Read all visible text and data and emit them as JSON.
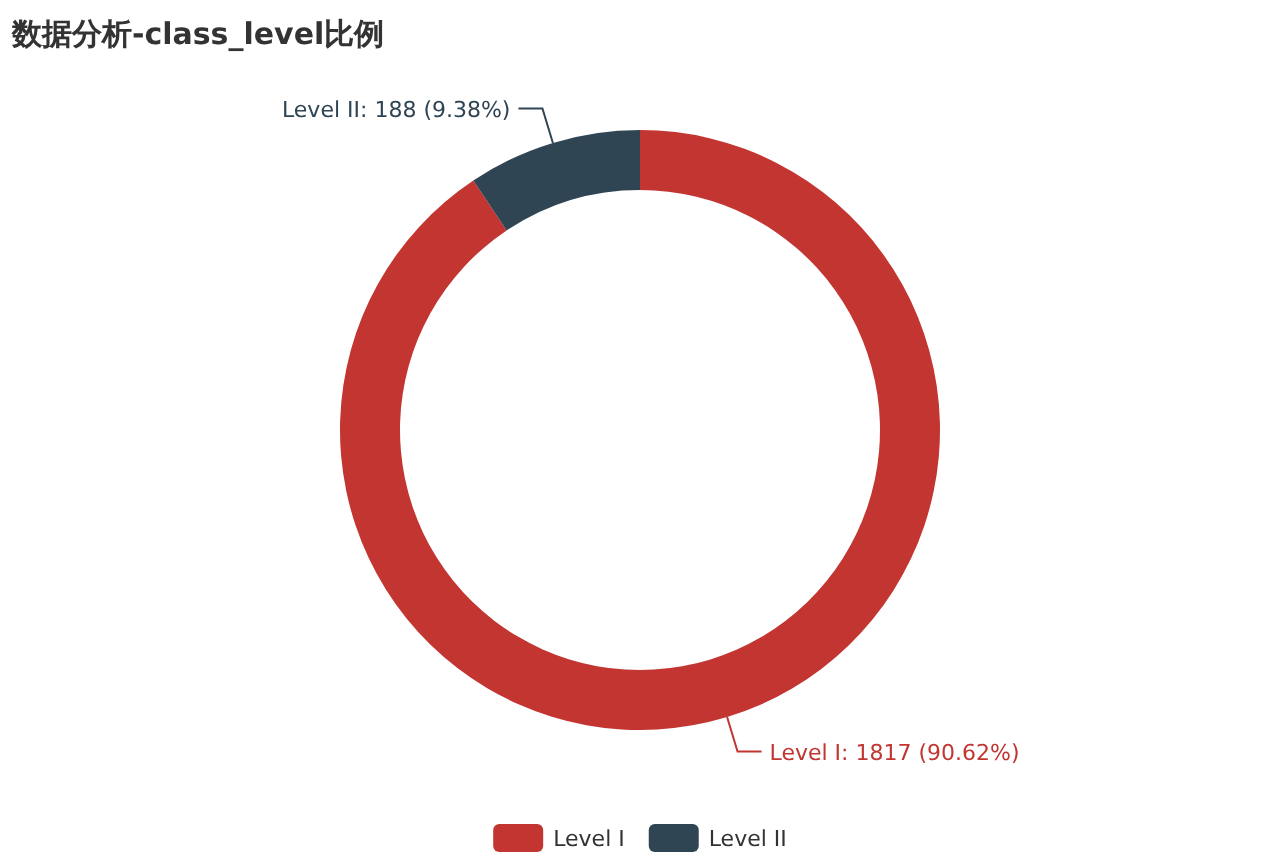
{
  "chart_data": {
    "type": "donut",
    "title": "数据分析-class_level比例",
    "categories": [
      "Level I",
      "Level II"
    ],
    "values": [
      1817,
      188
    ],
    "colors": [
      "#c23531",
      "#2f4554"
    ],
    "value_labels": [
      "Level I: 1817 (90.62%)",
      "Level II: 188 (9.38%)"
    ],
    "legend": "bottom"
  }
}
